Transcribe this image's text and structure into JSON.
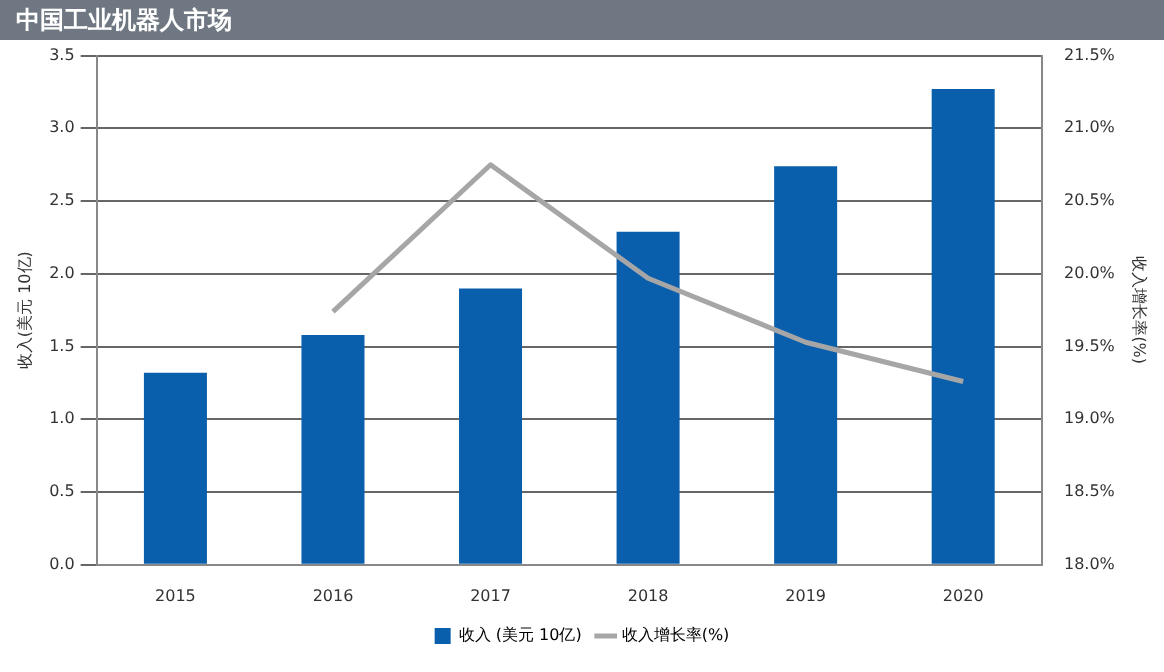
{
  "chart_data": {
    "type": "bar",
    "title": "中国工业机器人市场",
    "ylabel": "收入(美元 10亿)",
    "y2label": "收入增长率(%)",
    "categories": [
      "2015",
      "2016",
      "2017",
      "2018",
      "2019",
      "2020"
    ],
    "series": [
      {
        "name": "收入 (美元 10亿)",
        "color": "#0a5fad",
        "values": [
          1.32,
          1.58,
          1.9,
          2.29,
          2.74,
          3.27
        ]
      },
      {
        "name": "收入增长率(%)",
        "type": "line",
        "axis": "y2",
        "color": "#a6a6a6",
        "values": [
          null,
          19.74,
          20.75,
          19.97,
          19.53,
          19.26
        ]
      }
    ],
    "ylim": [
      0,
      3.5
    ],
    "yticks": [
      {
        "value": 0,
        "label": "0.0"
      },
      {
        "value": 0.5,
        "label": "0.5"
      },
      {
        "value": 1,
        "label": "1.0"
      },
      {
        "value": 1.5,
        "label": "1.5"
      },
      {
        "value": 2,
        "label": "2.0"
      },
      {
        "value": 2.5,
        "label": "2.5"
      },
      {
        "value": 3,
        "label": "3.0"
      },
      {
        "value": 3.5,
        "label": "3.5"
      }
    ],
    "y2lim": [
      18,
      21.5
    ],
    "y2ticks": [
      {
        "value": 18,
        "label": "18.0%"
      },
      {
        "value": 18.5,
        "label": "18.5%"
      },
      {
        "value": 19,
        "label": "19.0%"
      },
      {
        "value": 19.5,
        "label": "19.5%"
      },
      {
        "value": 20,
        "label": "20.0%"
      },
      {
        "value": 20.5,
        "label": "20.5%"
      },
      {
        "value": 21,
        "label": "21.0%"
      },
      {
        "value": 21.5,
        "label": "21.5%"
      }
    ],
    "grid": "y",
    "legend": "bottom",
    "marker": "none"
  }
}
